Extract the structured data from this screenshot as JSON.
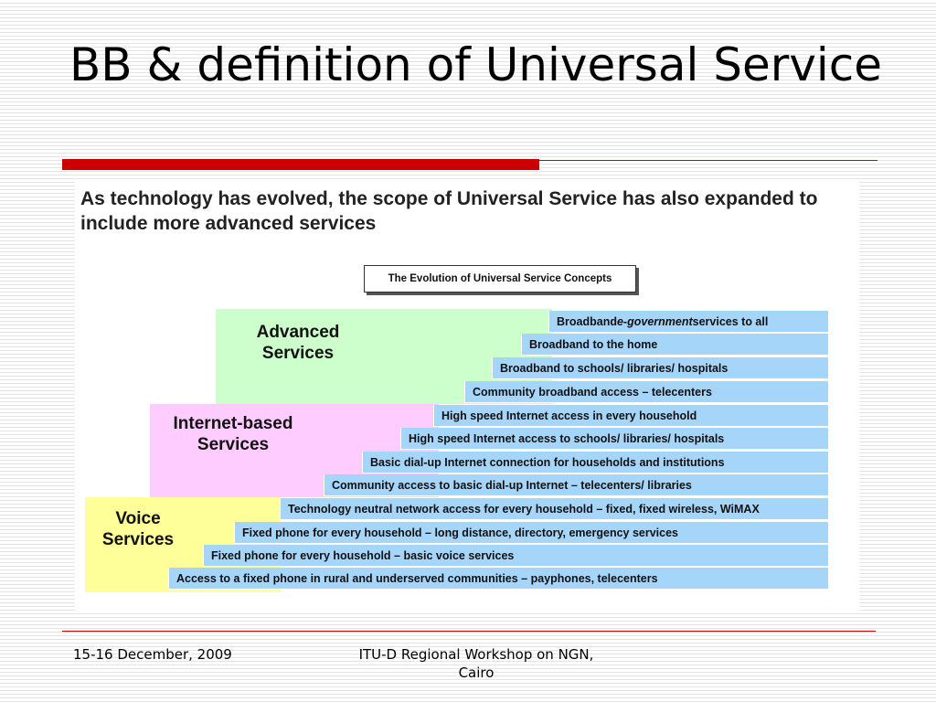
{
  "slide": {
    "title": "BB & definition of Universal Service",
    "headline": "As technology has evolved, the scope of Universal Service has also expanded to include more advanced services",
    "caption": "The Evolution of Universal Service Concepts",
    "tiers": {
      "advanced": "Advanced Services",
      "internet": "Internet-based Services",
      "voice": "Voice Services"
    },
    "steps": [
      {
        "pre": "Broadband ",
        "em": "e-government",
        "post": " services to all"
      },
      {
        "pre": "Broadband to the home",
        "em": "",
        "post": ""
      },
      {
        "pre": "Broadband to schools/ libraries/ hospitals",
        "em": "",
        "post": ""
      },
      {
        "pre": "Community broadband access – telecenters",
        "em": "",
        "post": ""
      },
      {
        "pre": "High speed Internet access in every household",
        "em": "",
        "post": ""
      },
      {
        "pre": "High speed Internet access to schools/ libraries/ hospitals",
        "em": "",
        "post": ""
      },
      {
        "pre": "Basic dial-up Internet connection for households and institutions",
        "em": "",
        "post": ""
      },
      {
        "pre": "Community access to basic dial-up Internet – telecenters/ libraries",
        "em": "",
        "post": ""
      },
      {
        "pre": "Technology neutral network access for every household – fixed, fixed wireless, WiMAX",
        "em": "",
        "post": ""
      },
      {
        "pre": "Fixed phone for every household – long distance, directory, emergency services",
        "em": "",
        "post": ""
      },
      {
        "pre": "Fixed phone for every household – basic voice services",
        "em": "",
        "post": ""
      },
      {
        "pre": "Access to a fixed phone in rural and underserved communities – payphones, telecenters",
        "em": "",
        "post": ""
      }
    ]
  },
  "footer": {
    "date": "15-16 December, 2009",
    "event_line1": "ITU-D Regional Workshop on NGN,",
    "event_line2": "Cairo"
  },
  "colors": {
    "accent_red": "#cc0000",
    "advanced_bg": "#ccffcc",
    "internet_bg": "#ffccff",
    "voice_bg": "#ffff99",
    "step_bg": "#a6d5fa"
  }
}
